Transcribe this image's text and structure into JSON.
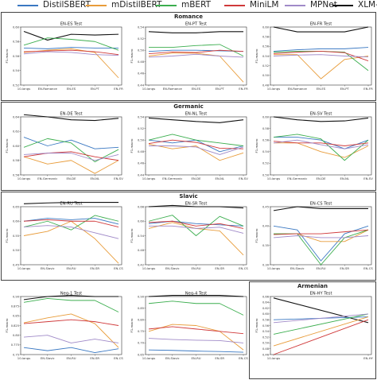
{
  "legend": {
    "items": [
      {
        "key": "distilsbert",
        "label": "DistilSBERT",
        "color": "#3a78c2"
      },
      {
        "key": "mdistilbert",
        "label": "mDistilBERT",
        "color": "#e89c3a"
      },
      {
        "key": "mbert",
        "label": "mBERT",
        "color": "#3cae4f"
      },
      {
        "key": "minilm",
        "label": "MiniLM",
        "color": "#d0393a"
      },
      {
        "key": "mpnet",
        "label": "MPNet",
        "color": "#a08ac8"
      },
      {
        "key": "xlmr",
        "label": "XLM-R",
        "color": "#111111"
      }
    ]
  },
  "groups": {
    "romance": "Romance",
    "germanic": "Germanic",
    "slavic": "Slavic",
    "armenian": "Armenian"
  },
  "chart_data": [
    {
      "type": "line",
      "title": "EN-ES Test",
      "ylabel": "F1-macro",
      "ylim": [
        0.52,
        0.6
      ],
      "yticks": [
        0.52,
        0.54,
        0.56,
        0.58,
        0.6
      ],
      "categories": [
        "10-langs",
        "EN-Romance",
        "EN-ES",
        "EN-PT",
        "EN-FR"
      ],
      "series": [
        {
          "key": "xlmr",
          "values": [
            0.594,
            0.582,
            0.59,
            0.589,
            0.59
          ]
        },
        {
          "key": "distilsbert",
          "values": [
            0.571,
            0.57,
            0.572,
            0.571,
            0.571
          ]
        },
        {
          "key": "mdistilbert",
          "values": [
            0.565,
            0.568,
            0.57,
            0.565,
            0.53
          ]
        },
        {
          "key": "mbert",
          "values": [
            0.575,
            0.585,
            0.583,
            0.58,
            0.568
          ]
        },
        {
          "key": "minilm",
          "values": [
            0.566,
            0.567,
            0.568,
            0.566,
            0.562
          ]
        },
        {
          "key": "mpnet",
          "values": [
            0.563,
            0.566,
            0.565,
            0.562,
            0.561
          ]
        }
      ]
    },
    {
      "type": "line",
      "title": "EN-PT Test",
      "ylabel": "F1-macro",
      "ylim": [
        0.44,
        0.54
      ],
      "yticks": [
        0.44,
        0.46,
        0.48,
        0.5,
        0.52,
        0.54
      ],
      "categories": [
        "10-langs",
        "EN-Romance",
        "EN-ES",
        "EN-PT",
        "EN-FR"
      ],
      "series": [
        {
          "key": "xlmr",
          "values": [
            0.532,
            0.53,
            0.53,
            0.532,
            0.532
          ]
        },
        {
          "key": "distilsbert",
          "values": [
            0.498,
            0.5,
            0.5,
            0.499,
            0.498
          ]
        },
        {
          "key": "mdistilbert",
          "values": [
            0.49,
            0.495,
            0.495,
            0.49,
            0.445
          ]
        },
        {
          "key": "mbert",
          "values": [
            0.505,
            0.505,
            0.508,
            0.51,
            0.49
          ]
        },
        {
          "key": "minilm",
          "values": [
            0.494,
            0.497,
            0.496,
            0.5,
            0.498
          ]
        },
        {
          "key": "mpnet",
          "values": [
            0.488,
            0.49,
            0.493,
            0.49,
            0.488
          ]
        }
      ]
    },
    {
      "type": "line",
      "title": "EN-FR Test",
      "ylabel": "F1-macro",
      "ylim": [
        0.48,
        0.6
      ],
      "yticks": [
        0.48,
        0.5,
        0.52,
        0.54,
        0.56,
        0.58,
        0.6
      ],
      "categories": [
        "10-langs",
        "EN-Romance",
        "EN-ES",
        "EN-PT",
        "EN-FR"
      ],
      "series": [
        {
          "key": "xlmr",
          "values": [
            0.6,
            0.59,
            0.59,
            0.59,
            0.6
          ]
        },
        {
          "key": "distilsbert",
          "values": [
            0.55,
            0.553,
            0.555,
            0.555,
            0.558
          ]
        },
        {
          "key": "mdistilbert",
          "values": [
            0.543,
            0.543,
            0.493,
            0.533,
            0.54
          ]
        },
        {
          "key": "mbert",
          "values": [
            0.548,
            0.55,
            0.55,
            0.548,
            0.51
          ]
        },
        {
          "key": "minilm",
          "values": [
            0.545,
            0.548,
            0.55,
            0.547,
            0.53
          ]
        },
        {
          "key": "mpnet",
          "values": [
            0.54,
            0.542,
            0.543,
            0.54,
            0.538
          ]
        }
      ]
    },
    {
      "type": "line",
      "title": "EN-DE Test",
      "ylabel": "F1-macro",
      "ylim": [
        0.56,
        0.64
      ],
      "yticks": [
        0.56,
        0.58,
        0.6,
        0.62,
        0.64
      ],
      "categories": [
        "10-langs",
        "EN-Germanic",
        "EN-DE",
        "EN-NL",
        "EN-SV"
      ],
      "series": [
        {
          "key": "xlmr",
          "values": [
            0.643,
            0.64,
            0.636,
            0.635,
            0.638
          ]
        },
        {
          "key": "distilsbert",
          "values": [
            0.612,
            0.6,
            0.608,
            0.596,
            0.598
          ]
        },
        {
          "key": "mdistilbert",
          "values": [
            0.585,
            0.575,
            0.58,
            0.562,
            0.58
          ]
        },
        {
          "key": "mbert",
          "values": [
            0.598,
            0.61,
            0.604,
            0.578,
            0.595
          ]
        },
        {
          "key": "minilm",
          "values": [
            0.585,
            0.59,
            0.592,
            0.585,
            0.58
          ]
        },
        {
          "key": "mpnet",
          "values": [
            0.588,
            0.59,
            0.59,
            0.58,
            0.588
          ]
        }
      ]
    },
    {
      "type": "line",
      "title": "EN-NL Test",
      "ylabel": "F1-macro",
      "ylim": [
        0.44,
        0.54
      ],
      "yticks": [
        0.44,
        0.46,
        0.48,
        0.5,
        0.52,
        0.54
      ],
      "categories": [
        "10-langs",
        "EN-Germanic",
        "EN-DE",
        "EN-NL",
        "EN-SV"
      ],
      "series": [
        {
          "key": "xlmr",
          "values": [
            0.538,
            0.535,
            0.532,
            0.53,
            0.535
          ]
        },
        {
          "key": "distilsbert",
          "values": [
            0.5,
            0.495,
            0.5,
            0.48,
            0.49
          ]
        },
        {
          "key": "mdistilbert",
          "values": [
            0.493,
            0.485,
            0.49,
            0.465,
            0.478
          ]
        },
        {
          "key": "mbert",
          "values": [
            0.5,
            0.51,
            0.5,
            0.495,
            0.49
          ]
        },
        {
          "key": "minilm",
          "values": [
            0.494,
            0.5,
            0.496,
            0.486,
            0.485
          ]
        },
        {
          "key": "mpnet",
          "values": [
            0.49,
            0.49,
            0.488,
            0.475,
            0.488
          ]
        }
      ]
    },
    {
      "type": "line",
      "title": "EN-SV Test",
      "ylabel": "F1-macro",
      "ylim": [
        0.5,
        0.6
      ],
      "yticks": [
        0.5,
        0.52,
        0.54,
        0.56,
        0.58,
        0.6
      ],
      "categories": [
        "10-langs",
        "EN-Germanic",
        "EN-DE",
        "EN-NL",
        "EN-SV"
      ],
      "series": [
        {
          "key": "xlmr",
          "values": [
            0.6,
            0.595,
            0.592,
            0.593,
            0.598
          ]
        },
        {
          "key": "distilsbert",
          "values": [
            0.565,
            0.565,
            0.56,
            0.545,
            0.56
          ]
        },
        {
          "key": "mdistilbert",
          "values": [
            0.555,
            0.555,
            0.54,
            0.53,
            0.55
          ]
        },
        {
          "key": "mbert",
          "values": [
            0.565,
            0.57,
            0.562,
            0.525,
            0.56
          ]
        },
        {
          "key": "minilm",
          "values": [
            0.558,
            0.555,
            0.555,
            0.55,
            0.555
          ]
        },
        {
          "key": "mpnet",
          "values": [
            0.555,
            0.56,
            0.552,
            0.545,
            0.552
          ]
        }
      ]
    },
    {
      "type": "line",
      "title": "EN-RU Test",
      "ylabel": "F1-macro",
      "ylim": [
        0.45,
        0.65
      ],
      "yticks": [
        0.45,
        0.5,
        0.55,
        0.6,
        0.65
      ],
      "categories": [
        "10-langs",
        "EN-Slavic",
        "EN-RU",
        "EN-SR",
        "EN-CS"
      ],
      "series": [
        {
          "key": "xlmr",
          "values": [
            0.66,
            0.663,
            0.665,
            0.665,
            0.665
          ]
        },
        {
          "key": "distilsbert",
          "values": [
            0.6,
            0.61,
            0.605,
            0.61,
            0.59
          ]
        },
        {
          "key": "mdistilbert",
          "values": [
            0.55,
            0.565,
            0.6,
            0.54,
            0.455
          ]
        },
        {
          "key": "mbert",
          "values": [
            0.58,
            0.6,
            0.57,
            0.62,
            0.6
          ]
        },
        {
          "key": "minilm",
          "values": [
            0.6,
            0.605,
            0.6,
            0.6,
            0.58
          ]
        },
        {
          "key": "mpnet",
          "values": [
            0.58,
            0.585,
            0.58,
            0.56,
            0.54
          ]
        }
      ]
    },
    {
      "type": "line",
      "title": "EN-SR Test",
      "ylabel": "F1-macro",
      "ylim": [
        0.42,
        0.66
      ],
      "yticks": [
        0.42,
        0.48,
        0.54,
        0.6,
        0.66
      ],
      "categories": [
        "10-langs",
        "EN-Slavic",
        "EN-RU",
        "EN-SR",
        "EN-CS"
      ],
      "series": [
        {
          "key": "xlmr",
          "values": [
            0.66,
            0.665,
            0.66,
            0.66,
            0.655
          ]
        },
        {
          "key": "distilsbert",
          "values": [
            0.59,
            0.6,
            0.59,
            0.585,
            0.58
          ]
        },
        {
          "key": "mdistilbert",
          "values": [
            0.57,
            0.595,
            0.57,
            0.56,
            0.46
          ]
        },
        {
          "key": "mbert",
          "values": [
            0.6,
            0.625,
            0.54,
            0.62,
            0.58
          ]
        },
        {
          "key": "minilm",
          "values": [
            0.595,
            0.6,
            0.58,
            0.59,
            0.57
          ]
        },
        {
          "key": "mpnet",
          "values": [
            0.58,
            0.58,
            0.57,
            0.575,
            0.55
          ]
        }
      ]
    },
    {
      "type": "line",
      "title": "EN-CS Test",
      "ylabel": "F1-macro",
      "ylim": [
        0.3,
        0.45
      ],
      "yticks": [
        0.3,
        0.35,
        0.4,
        0.45
      ],
      "categories": [
        "10-langs",
        "EN-Slavic",
        "EN-RU",
        "EN-SR",
        "EN-CS"
      ],
      "series": [
        {
          "key": "xlmr",
          "values": [
            0.44,
            0.45,
            0.445,
            0.445,
            0.445
          ]
        },
        {
          "key": "distilsbert",
          "values": [
            0.4,
            0.39,
            0.31,
            0.38,
            0.4
          ]
        },
        {
          "key": "mdistilbert",
          "values": [
            0.38,
            0.38,
            0.36,
            0.36,
            0.39
          ]
        },
        {
          "key": "mbert",
          "values": [
            0.38,
            0.38,
            0.3,
            0.37,
            0.39
          ]
        },
        {
          "key": "minilm",
          "values": [
            0.378,
            0.38,
            0.38,
            0.385,
            0.39
          ]
        },
        {
          "key": "mpnet",
          "values": [
            0.37,
            0.375,
            0.37,
            0.37,
            0.375
          ]
        }
      ]
    },
    {
      "type": "line",
      "title": "Neg-1 Test",
      "ylabel": "F1-macro",
      "ylim": [
        0.75,
        0.9
      ],
      "yticks": [
        0.75,
        0.775,
        0.8,
        0.825,
        0.85,
        0.875,
        0.9
      ],
      "categories": [
        "10-langs",
        "EN-Slavic",
        "EN-RU",
        "EN-SR",
        "EN-CS"
      ],
      "series": [
        {
          "key": "xlmr",
          "values": [
            0.892,
            0.9,
            0.903,
            0.9,
            0.9
          ]
        },
        {
          "key": "distilsbert",
          "values": [
            0.768,
            0.76,
            0.768,
            0.755,
            0.765
          ]
        },
        {
          "key": "mdistilbert",
          "values": [
            0.832,
            0.845,
            0.855,
            0.83,
            0.768
          ]
        },
        {
          "key": "mbert",
          "values": [
            0.885,
            0.895,
            0.89,
            0.89,
            0.86
          ]
        },
        {
          "key": "minilm",
          "values": [
            0.83,
            0.835,
            0.84,
            0.835,
            0.825
          ]
        },
        {
          "key": "mpnet",
          "values": [
            0.795,
            0.8,
            0.78,
            0.79,
            0.78
          ]
        }
      ]
    },
    {
      "type": "line",
      "title": "Neg-4 Test",
      "ylabel": "F1-macro",
      "ylim": [
        0.65,
        0.9
      ],
      "yticks": [
        0.65,
        0.7,
        0.75,
        0.8,
        0.85,
        0.9
      ],
      "categories": [
        "10-langs",
        "EN-Slavic",
        "EN-RU",
        "EN-SR",
        "EN-CS"
      ],
      "series": [
        {
          "key": "xlmr",
          "values": [
            0.9,
            0.905,
            0.905,
            0.905,
            0.9
          ]
        },
        {
          "key": "distilsbert",
          "values": [
            0.67,
            0.668,
            0.665,
            0.663,
            0.66
          ]
        },
        {
          "key": "mdistilbert",
          "values": [
            0.75,
            0.78,
            0.775,
            0.75,
            0.67
          ]
        },
        {
          "key": "mbert",
          "values": [
            0.87,
            0.88,
            0.87,
            0.87,
            0.82
          ]
        },
        {
          "key": "minilm",
          "values": [
            0.76,
            0.77,
            0.76,
            0.75,
            0.74
          ]
        },
        {
          "key": "mpnet",
          "values": [
            0.72,
            0.715,
            0.712,
            0.71,
            0.7
          ]
        }
      ]
    },
    {
      "type": "line",
      "title": "EN-HY Test",
      "ylabel": "F1-macro",
      "ylim": [
        0.46,
        0.66
      ],
      "yticks": [
        0.46,
        0.48,
        0.5,
        0.52,
        0.54,
        0.56,
        0.58,
        0.6,
        0.62,
        0.64,
        0.66
      ],
      "categories": [
        "10-langs",
        "EN-HY"
      ],
      "series": [
        {
          "key": "xlmr",
          "values": [
            0.655,
            0.57
          ]
        },
        {
          "key": "distilsbert",
          "values": [
            0.58,
            0.59
          ]
        },
        {
          "key": "mdistilbert",
          "values": [
            0.49,
            0.59
          ]
        },
        {
          "key": "mbert",
          "values": [
            0.53,
            0.6
          ]
        },
        {
          "key": "minilm",
          "values": [
            0.46,
            0.58
          ]
        },
        {
          "key": "mpnet",
          "values": [
            0.57,
            0.6
          ]
        }
      ]
    }
  ]
}
